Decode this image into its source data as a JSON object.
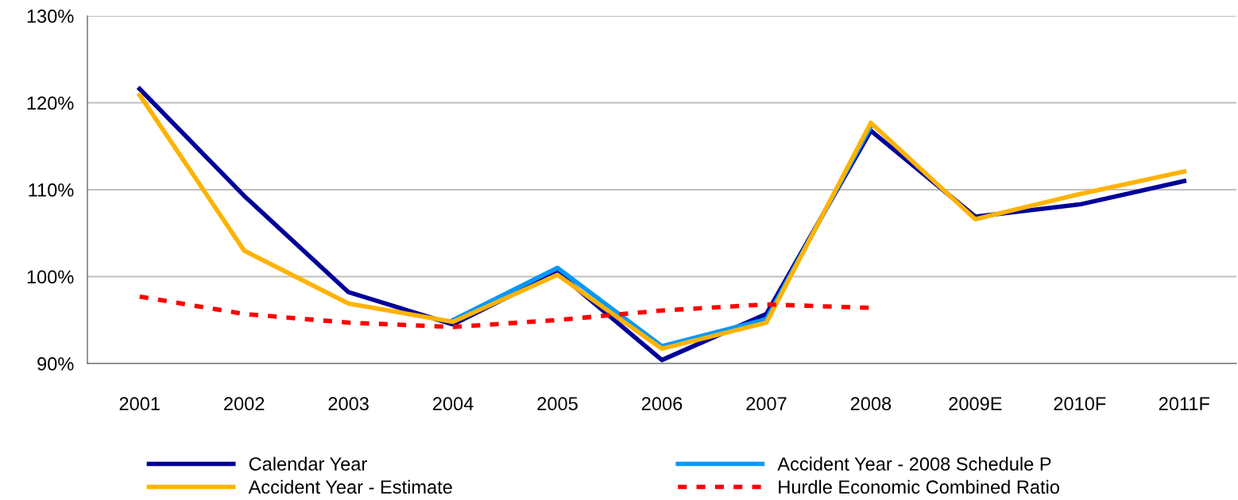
{
  "chart_data": {
    "type": "line",
    "categories": [
      "2001",
      "2002",
      "2003",
      "2004",
      "2005",
      "2006",
      "2007",
      "2008",
      "2009E",
      "2010F",
      "2011F"
    ],
    "ylim": [
      90,
      130
    ],
    "yticks": [
      {
        "value": 90,
        "label": "90%"
      },
      {
        "value": 100,
        "label": "100%"
      },
      {
        "value": 110,
        "label": "110%"
      },
      {
        "value": 120,
        "label": "120%"
      },
      {
        "value": 130,
        "label": "130%"
      }
    ],
    "grid": "y",
    "legend": "bottom",
    "marker": "none",
    "series": [
      {
        "name": "Calendar Year",
        "color": "#000099",
        "line_style": "solid",
        "values": [
          121.6,
          109.3,
          98.2,
          94.5,
          100.5,
          90.4,
          95.7,
          116.8,
          106.9,
          108.3,
          111.0
        ]
      },
      {
        "name": "Accident Year - 2008 Schedule P",
        "color": "#0099ff",
        "line_style": "solid",
        "values": [
          null,
          null,
          null,
          95.0,
          101.0,
          92.0,
          95.1,
          117.3,
          null,
          null,
          null
        ]
      },
      {
        "name": "Accident Year - Estimate",
        "color": "#ffb300",
        "line_style": "solid",
        "values": [
          120.9,
          103.0,
          96.9,
          94.8,
          100.2,
          91.7,
          94.7,
          117.7,
          106.6,
          109.5,
          112.1
        ]
      },
      {
        "name": "Hurdle Economic Combined Ratio",
        "color": "#ff0000",
        "line_style": "dashed",
        "values": [
          97.7,
          95.7,
          94.7,
          94.2,
          95.0,
          96.1,
          96.8,
          96.4,
          null,
          null,
          null
        ]
      }
    ]
  }
}
